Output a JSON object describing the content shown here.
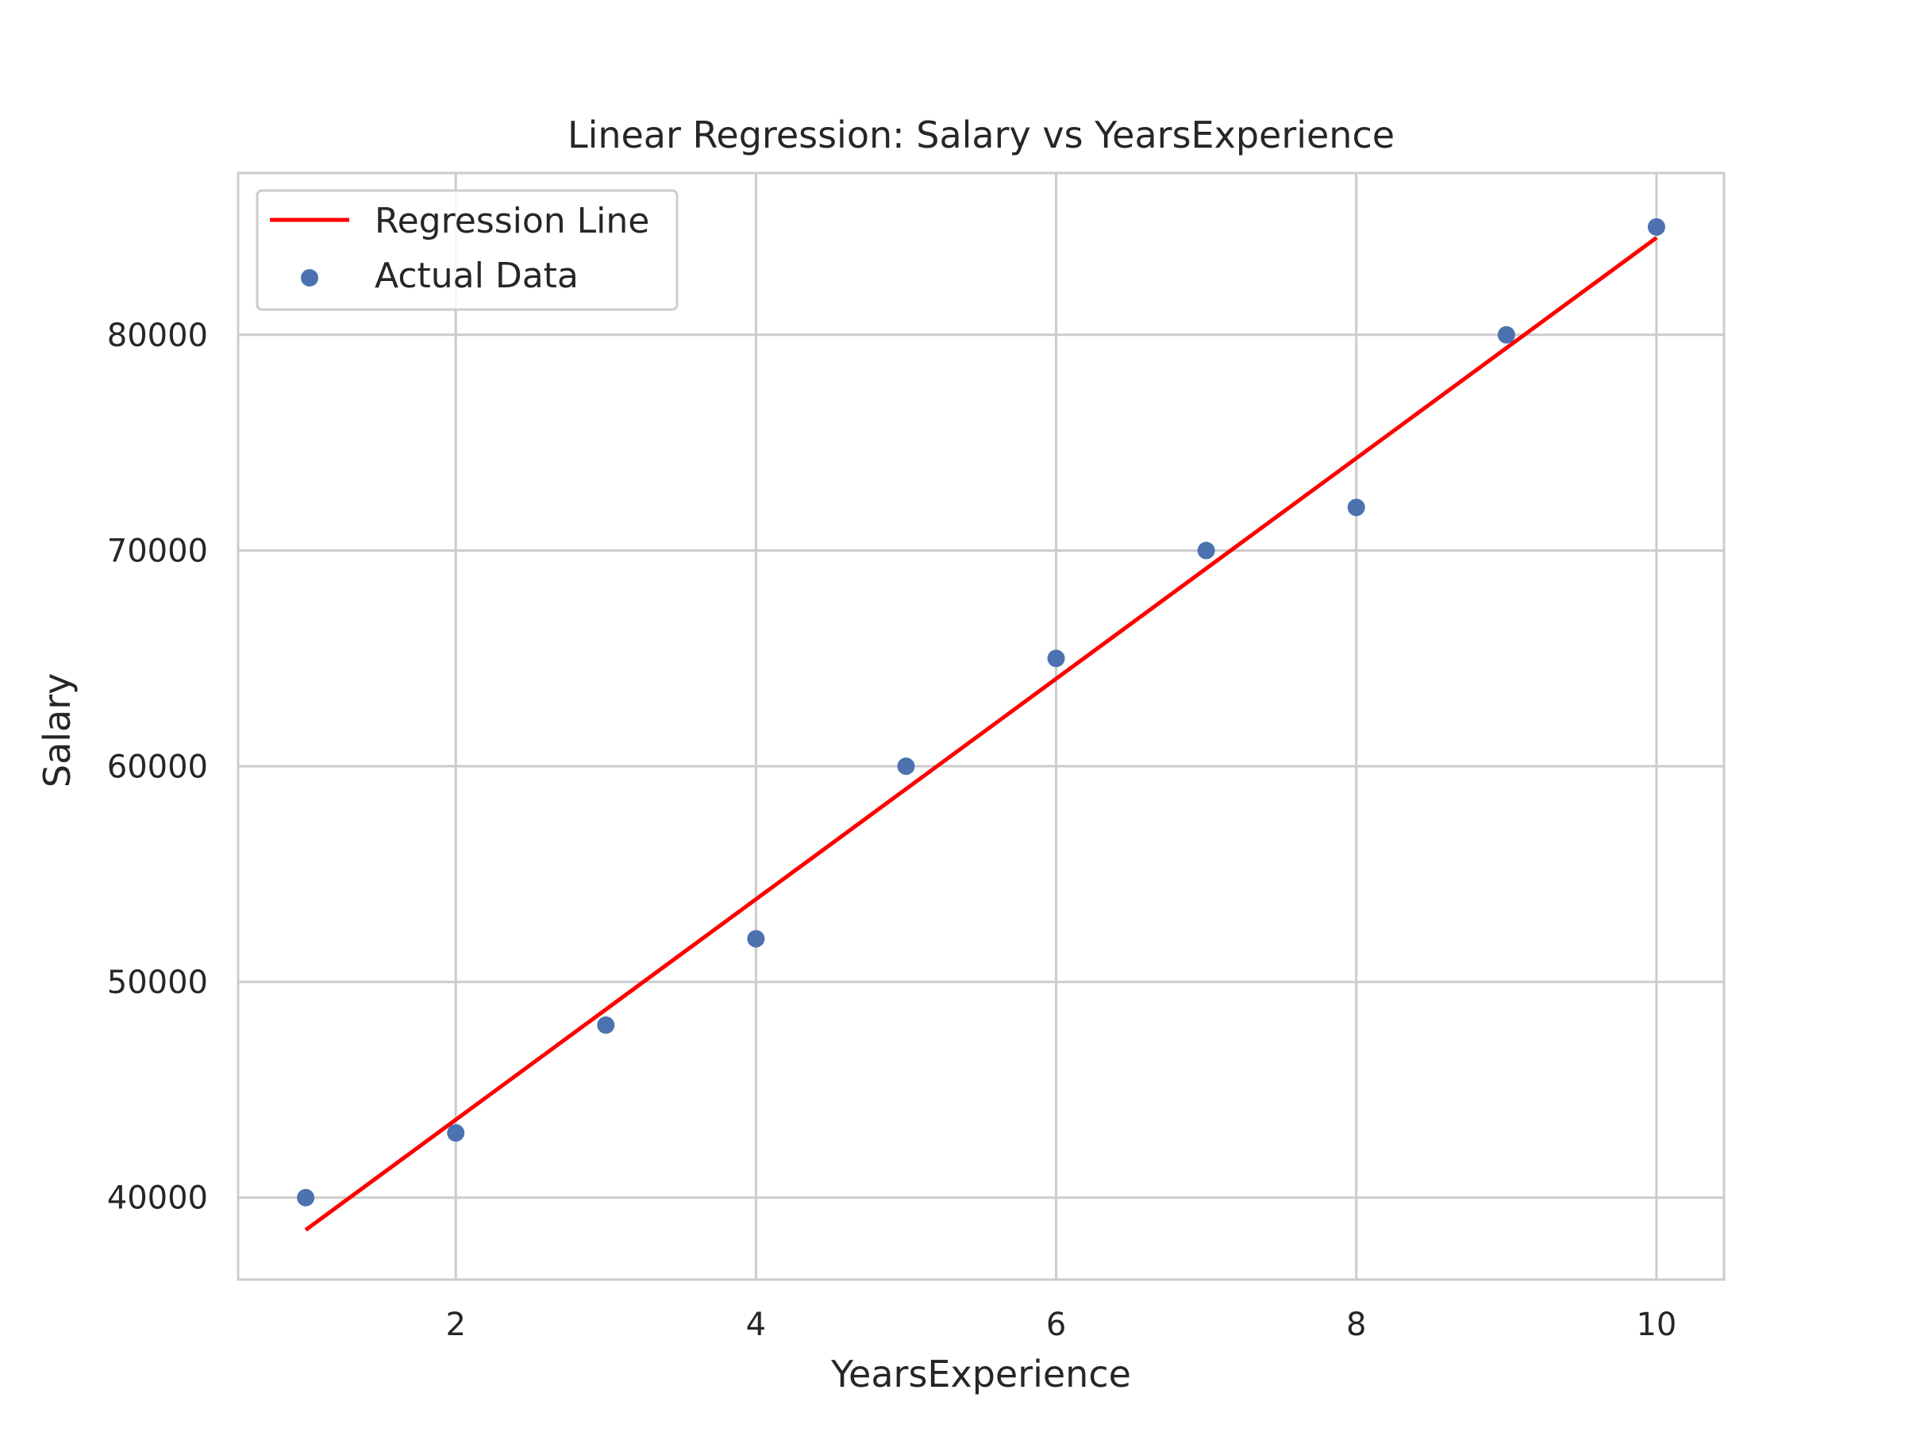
{
  "chart_data": {
    "type": "scatter",
    "title": "Linear Regression: Salary vs YearsExperience",
    "xlabel": "YearsExperience",
    "ylabel": "Salary",
    "xlim": [
      0.55,
      10.45
    ],
    "ylim": [
      36200,
      87500
    ],
    "xticks": [
      2,
      4,
      6,
      8,
      10
    ],
    "yticks": [
      40000,
      50000,
      60000,
      70000,
      80000
    ],
    "grid": true,
    "legend_position": "upper-left",
    "series": [
      {
        "name": "Regression Line",
        "kind": "line",
        "color": "#ff0000",
        "x": [
          1,
          10
        ],
        "y": [
          38500,
          84500
        ]
      },
      {
        "name": "Actual Data",
        "kind": "scatter",
        "color": "#4c72b0",
        "x": [
          1,
          2,
          3,
          4,
          5,
          6,
          7,
          8,
          9,
          10
        ],
        "y": [
          40000,
          43000,
          48000,
          52000,
          60000,
          65000,
          70000,
          72000,
          80000,
          85000
        ]
      }
    ]
  }
}
